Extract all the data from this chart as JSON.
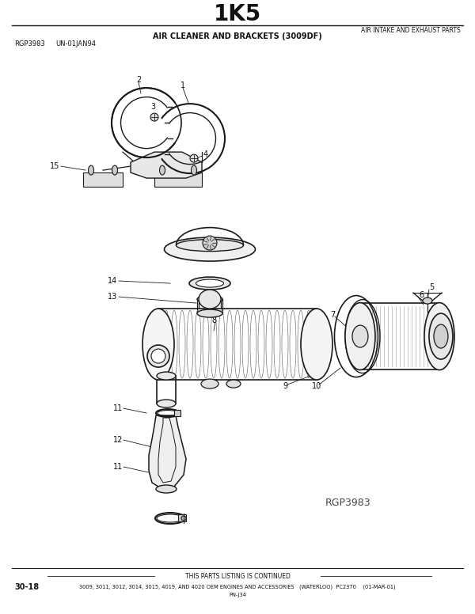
{
  "title": "1K5",
  "title_fontsize": 20,
  "subtitle_right": "AIR INTAKE AND EXHAUST PARTS",
  "subtitle_center": "AIR CLEANER AND BRACKETS (3009DF)",
  "top_left_text1": "RGP3983",
  "top_left_text2": "UN-01JAN94",
  "bottom_left": "30-18",
  "bottom_center_line1": "THIS PARTS LISTING IS CONTINUED",
  "bottom_center_line2": "3009, 3011, 3012, 3014, 3015, 4019, AND 4020 OEM ENGINES AND ACCESSORIES   (WATERLOO)  PC2370    (01-MAR-01)",
  "bottom_center_line3": "PN-J34",
  "watermark": "RGP3983",
  "bg_color": "#ffffff",
  "lc": "#1a1a1a",
  "tc": "#111111"
}
